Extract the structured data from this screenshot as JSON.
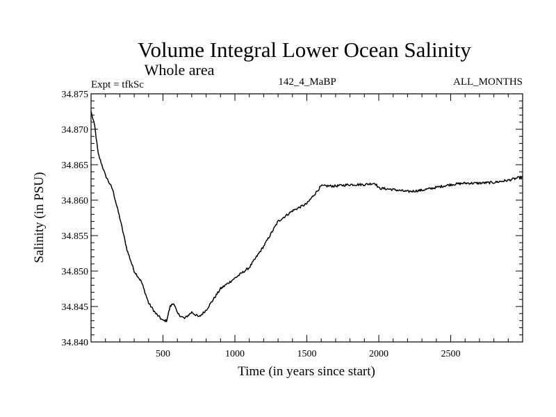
{
  "chart_data": {
    "type": "line",
    "title": "Volume Integral Lower Ocean Salinity",
    "subtitle": "Whole area",
    "expt_label": "Expt = tfkSc",
    "run_id": "142_4_MaBP",
    "months_label": "ALL_MONTHS",
    "xlabel": "Time (in years since start)",
    "ylabel": "Salinity (in PSU)",
    "xlim": [
      0,
      3000
    ],
    "ylim": [
      34.84,
      34.875
    ],
    "x_ticks": [
      500,
      1000,
      1500,
      2000,
      2500
    ],
    "y_ticks": [
      "34.840",
      "34.845",
      "34.850",
      "34.855",
      "34.860",
      "34.865",
      "34.870",
      "34.875"
    ],
    "series": [
      {
        "name": "Salinity",
        "x": [
          0,
          25,
          50,
          75,
          100,
          150,
          200,
          250,
          300,
          350,
          400,
          450,
          500,
          525,
          550,
          575,
          600,
          650,
          700,
          750,
          800,
          900,
          1000,
          1100,
          1200,
          1300,
          1400,
          1500,
          1600,
          1700,
          1800,
          1900,
          1975,
          2000,
          2100,
          2200,
          2300,
          2400,
          2500,
          2600,
          2700,
          2800,
          2900,
          3000
        ],
        "values": [
          34.8725,
          34.8705,
          34.8665,
          34.865,
          34.8635,
          34.8615,
          34.8575,
          34.853,
          34.85,
          34.8485,
          34.8455,
          34.844,
          34.843,
          34.843,
          34.845,
          34.8455,
          34.844,
          34.8433,
          34.8442,
          34.8435,
          34.8445,
          34.8475,
          34.849,
          34.8505,
          34.8535,
          34.857,
          34.8585,
          34.8595,
          34.862,
          34.862,
          34.8622,
          34.8622,
          34.8624,
          34.8617,
          34.8615,
          34.8612,
          34.8614,
          34.8618,
          34.8622,
          34.8624,
          34.8624,
          34.8625,
          34.8628,
          34.8633
        ]
      }
    ]
  }
}
